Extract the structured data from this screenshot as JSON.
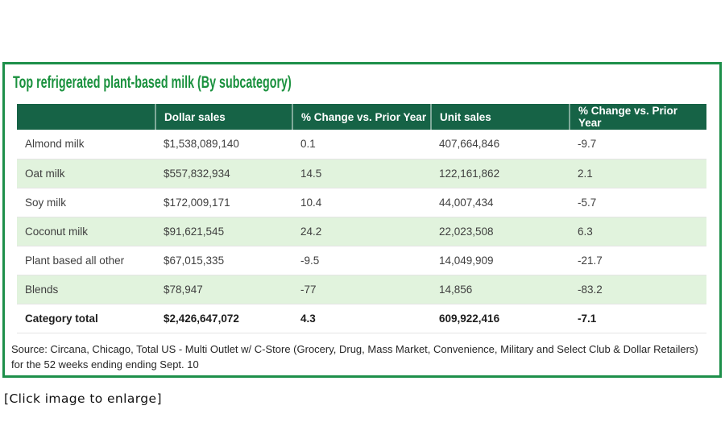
{
  "figure": {
    "title": "Top refrigerated plant-based milk (By subcategory)",
    "source_note": "Source: Circana, Chicago, Total US - Multi Outlet w/ C-Store (Grocery, Drug, Mass Market, Convenience, Military and Select Club & Dollar Retailers) for the 52 weeks ending ending Sept. 10",
    "caption": "[Click image to enlarge]"
  },
  "chart_data": {
    "type": "table",
    "title": "Top refrigerated plant-based milk (By subcategory)",
    "columns": [
      "",
      "Dollar sales",
      "% Change vs. Prior Year",
      "Unit sales",
      "% Change vs. Prior Year"
    ],
    "rows": [
      {
        "cells": [
          "Almond milk",
          "$1,538,089,140",
          "0.1",
          "407,664,846",
          "-9.7"
        ],
        "highlight": false,
        "bold": false
      },
      {
        "cells": [
          "Oat milk",
          "$557,832,934",
          "14.5",
          "122,161,862",
          "2.1"
        ],
        "highlight": true,
        "bold": false
      },
      {
        "cells": [
          "Soy milk",
          "$172,009,171",
          "10.4",
          "44,007,434",
          "-5.7"
        ],
        "highlight": false,
        "bold": false
      },
      {
        "cells": [
          "Coconut milk",
          "$91,621,545",
          "24.2",
          "22,023,508",
          "6.3"
        ],
        "highlight": true,
        "bold": false
      },
      {
        "cells": [
          "Plant based all other",
          "$67,015,335",
          "-9.5",
          "14,049,909",
          "-21.7"
        ],
        "highlight": false,
        "bold": false
      },
      {
        "cells": [
          "Blends",
          "$78,947",
          "-77",
          "14,856",
          "-83.2"
        ],
        "highlight": true,
        "bold": false
      },
      {
        "cells": [
          "Category total",
          "$2,426,647,072",
          "4.3",
          "609,922,416",
          "-7.1"
        ],
        "highlight": false,
        "bold": true
      }
    ],
    "layout_hints": {
      "highlighted_row_style": "alternating light green",
      "header_style": "dark green with white bold text",
      "grid": "horizontal row dividers only"
    }
  },
  "colors": {
    "card_border_green": "#1d8f4a",
    "title_green": "#1a913e",
    "header_bg_green": "#166346",
    "header_text": "#ffffff",
    "row_highlight_green": "#e1f3dd",
    "body_text": "#3f3f3f"
  }
}
